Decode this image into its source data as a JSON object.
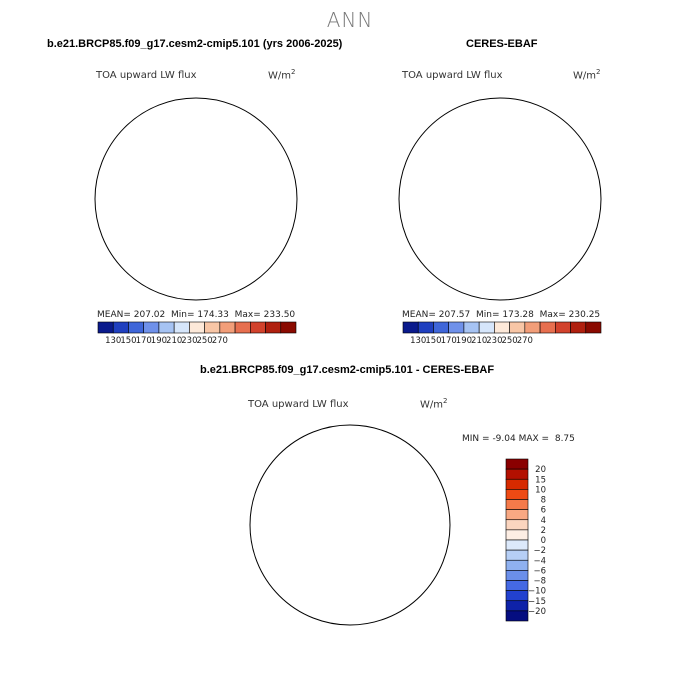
{
  "figure": {
    "title": "ANN"
  },
  "panels": [
    {
      "id": "model",
      "title": "b.e21.BRCP85.f09_g17.cesm2-cmip5.101 (yrs 2006-2025)",
      "variable": "TOA upward LW flux",
      "units_base": "W/m",
      "units_exp": "2",
      "stats": {
        "mean_label": "MEAN=",
        "mean": "207.02",
        "min_label": "Min=",
        "min": "174.33",
        "max_label": "Max=",
        "max": "233.50"
      },
      "colorbar_ticks": [
        "130",
        "150",
        "170",
        "190",
        "210",
        "230",
        "250",
        "270"
      ]
    },
    {
      "id": "obs",
      "title": "CERES-EBAF",
      "variable": "TOA upward LW flux",
      "units_base": "W/m",
      "units_exp": "2",
      "stats": {
        "mean_label": "MEAN=",
        "mean": "207.57",
        "min_label": "Min=",
        "min": "173.28",
        "max_label": "Max=",
        "max": "230.25"
      },
      "colorbar_ticks": [
        "130",
        "150",
        "170",
        "190",
        "210",
        "230",
        "250",
        "270"
      ]
    },
    {
      "id": "diff",
      "title": "b.e21.BRCP85.f09_g17.cesm2-cmip5.101 - CERES-EBAF",
      "variable": "TOA upward LW flux",
      "units_base": "W/m",
      "units_exp": "2",
      "stats": {
        "min_label": "MIN =",
        "min": "-9.04",
        "max_label": "MAX =",
        "max": "8.75"
      },
      "colorbar_ticks": [
        "20",
        "15",
        "10",
        "8",
        "6",
        "4",
        "2",
        "0",
        "−2",
        "−4",
        "−6",
        "−8",
        "−10",
        "−15",
        "−20"
      ]
    }
  ],
  "colors": {
    "abs_colorbar": [
      "#0a1a8c",
      "#1f3fbf",
      "#3f66d9",
      "#6f91ea",
      "#a6c3f3",
      "#d6e6fb",
      "#fde9d9",
      "#f8c6a6",
      "#f29e79",
      "#e76f4f",
      "#d2422c",
      "#b0200f",
      "#8a0a00"
    ],
    "diff_colorbar": [
      "#8a0000",
      "#b31000",
      "#d62a00",
      "#ee4a14",
      "#f57a4a",
      "#f8a883",
      "#fbd5bf",
      "#fdeee4",
      "#dce9fb",
      "#b6cff6",
      "#8fb1f0",
      "#6b8fea",
      "#4569e3",
      "#2241cf",
      "#0e22a8",
      "#050d80"
    ]
  }
}
